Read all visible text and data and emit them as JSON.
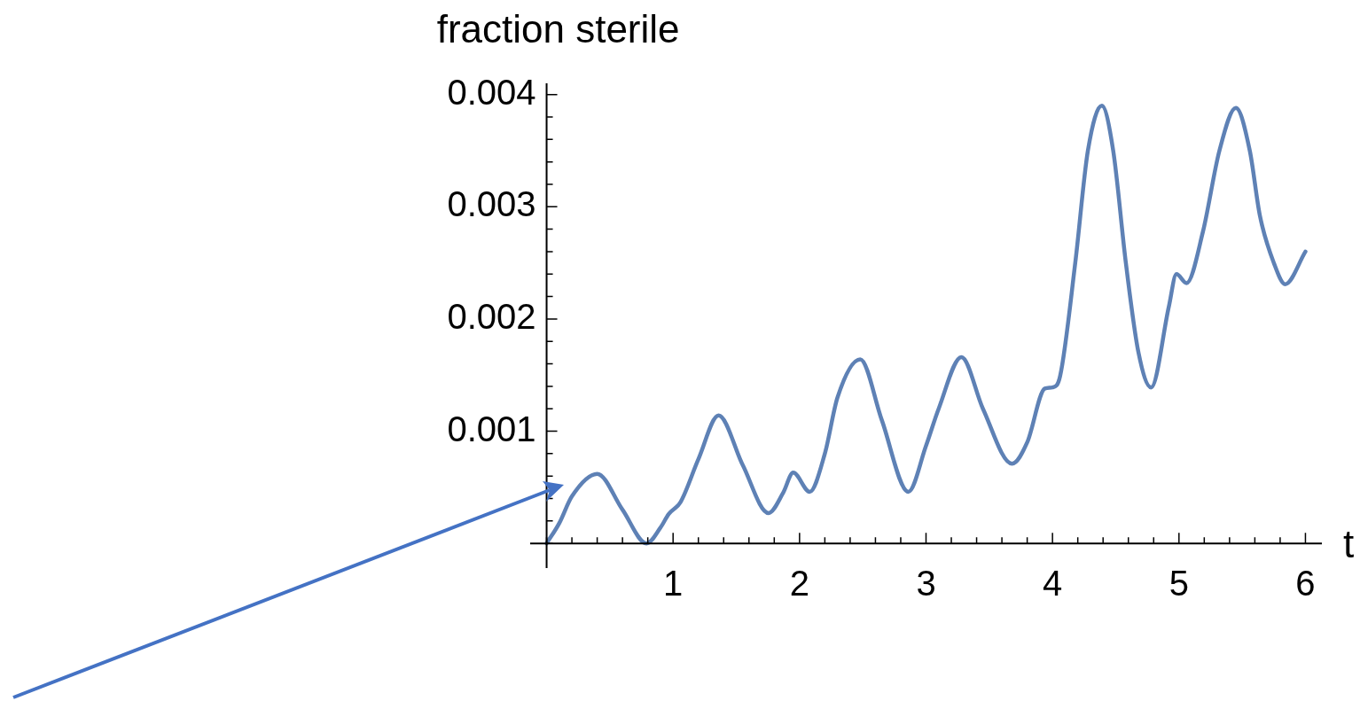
{
  "chart_data": {
    "type": "line",
    "xlabel": "t",
    "ylabel": "fraction sterile",
    "xlim": [
      -0.13,
      6.13
    ],
    "ylim": [
      -0.00022,
      0.0041
    ],
    "xticks": [
      {
        "value": 0,
        "label": null
      },
      {
        "value": 0.2,
        "label": null
      },
      {
        "value": 0.4,
        "label": null
      },
      {
        "value": 0.6,
        "label": null
      },
      {
        "value": 0.8,
        "label": null
      },
      1,
      {
        "value": 1.2,
        "label": null
      },
      {
        "value": 1.4,
        "label": null
      },
      {
        "value": 1.6,
        "label": null
      },
      {
        "value": 1.8,
        "label": null
      },
      2,
      {
        "value": 2.2,
        "label": null
      },
      {
        "value": 2.4,
        "label": null
      },
      {
        "value": 2.6,
        "label": null
      },
      {
        "value": 2.8,
        "label": null
      },
      3,
      {
        "value": 3.2,
        "label": null
      },
      {
        "value": 3.4,
        "label": null
      },
      {
        "value": 3.6,
        "label": null
      },
      {
        "value": 3.8,
        "label": null
      },
      4,
      {
        "value": 4.2,
        "label": null
      },
      {
        "value": 4.4,
        "label": null
      },
      {
        "value": 4.6,
        "label": null
      },
      {
        "value": 4.8,
        "label": null
      },
      5,
      {
        "value": 5.2,
        "label": null
      },
      {
        "value": 5.4,
        "label": null
      },
      {
        "value": 5.6,
        "label": null
      },
      {
        "value": 5.8,
        "label": null
      },
      6
    ],
    "yticks": [
      {
        "value": 0,
        "label": null
      },
      {
        "value": 0.0002,
        "label": null
      },
      {
        "value": 0.0004,
        "label": null
      },
      {
        "value": 0.0006,
        "label": null
      },
      {
        "value": 0.0008,
        "label": null
      },
      0.001,
      {
        "value": 0.0012,
        "label": null
      },
      {
        "value": 0.0014,
        "label": null
      },
      {
        "value": 0.0016,
        "label": null
      },
      {
        "value": 0.0018,
        "label": null
      },
      0.002,
      {
        "value": 0.0022,
        "label": null
      },
      {
        "value": 0.0024,
        "label": null
      },
      {
        "value": 0.0026,
        "label": null
      },
      {
        "value": 0.0028,
        "label": null
      },
      0.003,
      {
        "value": 0.0032,
        "label": null
      },
      {
        "value": 0.0034,
        "label": null
      },
      {
        "value": 0.0036,
        "label": null
      },
      {
        "value": 0.0038,
        "label": null
      },
      0.004
    ],
    "grid": false,
    "legend": false,
    "marker": "none",
    "line_style": "solid",
    "series": [
      {
        "color": "#5e81b5",
        "x": [
          0,
          0.1,
          0.2,
          0.4,
          0.6,
          0.79,
          0.9,
          0.965,
          1.06,
          1.2,
          1.36,
          1.55,
          1.755,
          1.87,
          1.95,
          2.08,
          2.2,
          2.3,
          2.48,
          2.65,
          2.86,
          3.0,
          3.1,
          3.28,
          3.45,
          3.68,
          3.8,
          3.94,
          4.0,
          4.06,
          4.18,
          4.28,
          4.39,
          4.48,
          4.58,
          4.68,
          4.78,
          4.92,
          4.98,
          5.06,
          5.19,
          5.32,
          5.45,
          5.56,
          5.64,
          5.75,
          5.84,
          6.0
        ],
        "values": [
          0,
          0.00018,
          0.00042,
          0.00062,
          0.0003,
          0,
          0.00014,
          0.00026,
          0.00037,
          0.00075,
          0.00114,
          0.0007,
          0.00027,
          0.00045,
          0.00063,
          0.00046,
          0.0008,
          0.0013,
          0.00164,
          0.0011,
          0.00046,
          0.00087,
          0.0012,
          0.00166,
          0.0012,
          0.00071,
          0.0009,
          0.00138,
          0.00139,
          0.00149,
          0.0025,
          0.0035,
          0.0039,
          0.0035,
          0.0025,
          0.0017,
          0.00139,
          0.00211,
          0.0024,
          0.00232,
          0.00278,
          0.0035,
          0.00388,
          0.0035,
          0.00292,
          0.0025,
          0.00231,
          0.0026
        ]
      }
    ]
  }
}
